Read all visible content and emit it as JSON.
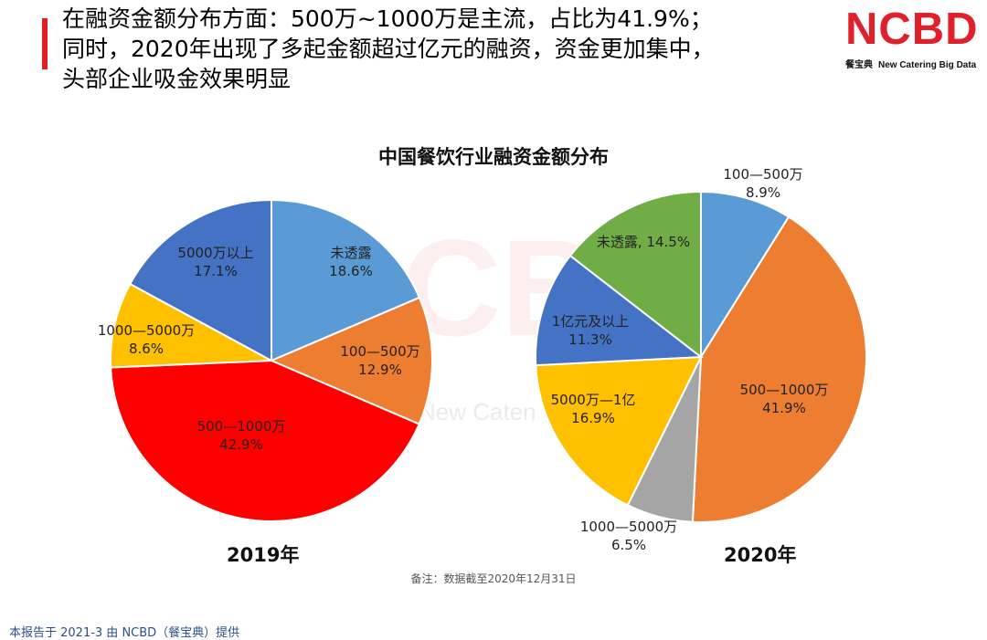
{
  "header": {
    "headline_lines": [
      "在融资金额分布方面：500万~1000万是主流，占比为41.9%；",
      "同时，2020年出现了多起金额超过亿元的融资，资金更加集中，",
      "头部企业吸金效果明显"
    ],
    "logo_main": "NCBD",
    "logo_sub_cn": "餐宝典",
    "logo_sub_en": "New Catering Big Data"
  },
  "watermark": {
    "mark": "CB",
    "text": "New Caten"
  },
  "chart_title": "中国餐饮行业融资金额分布",
  "chart_data": [
    {
      "type": "pie",
      "title": "2019年",
      "slices": [
        {
          "label": "未透露",
          "value": 18.6,
          "display": "18.6%",
          "color": "#5b9bd5"
        },
        {
          "label": "100—500万",
          "value": 12.9,
          "display": "12.9%",
          "color": "#ed7d31"
        },
        {
          "label": "500—1000万",
          "value": 42.9,
          "display": "42.9%",
          "color": "#ff0000"
        },
        {
          "label": "1000—5000万",
          "value": 8.6,
          "display": "8.6%",
          "color": "#ffc000"
        },
        {
          "label": "5000万以上",
          "value": 17.1,
          "display": "17.1%",
          "color": "#4472c4"
        }
      ]
    },
    {
      "type": "pie",
      "title": "2020年",
      "slices": [
        {
          "label": "100—500万",
          "value": 8.9,
          "display": "8.9%",
          "color": "#5b9bd5"
        },
        {
          "label": "500—1000万",
          "value": 41.9,
          "display": "41.9%",
          "color": "#ed7d31"
        },
        {
          "label": "1000—5000万",
          "value": 6.5,
          "display": "6.5%",
          "color": "#a5a5a5"
        },
        {
          "label": "5000万—1亿",
          "value": 16.9,
          "display": "16.9%",
          "color": "#ffc000"
        },
        {
          "label": "1亿元及以上",
          "value": 11.3,
          "display": "11.3%",
          "color": "#4472c4"
        },
        {
          "label": "未透露",
          "value": 14.5,
          "display": "14.5%",
          "color": "#70ad47"
        }
      ]
    }
  ],
  "year_labels": [
    "2019年",
    "2020年"
  ],
  "note": "备注：数据截至2020年12月31日",
  "footer": "本报告于 2021-3 由 NCBD（餐宝典）提供"
}
